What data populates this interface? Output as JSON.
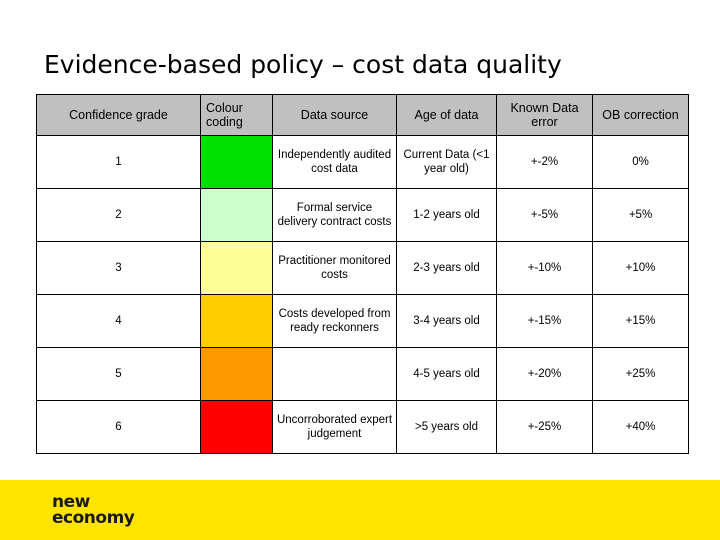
{
  "title": "Evidence-based policy – cost data quality",
  "table": {
    "headers": [
      "Confidence grade",
      "Colour coding",
      "Data source",
      "Age of data",
      "Known Data error",
      "OB correction"
    ],
    "rows": [
      {
        "grade": "1",
        "color": "#00e000",
        "source": "Independently audited cost data",
        "age": "Current Data (<1 year old)",
        "error": "+-2%",
        "correction": "0%"
      },
      {
        "grade": "2",
        "color": "#ccffcc",
        "source": "Formal service delivery contract costs",
        "age": "1-2  years old",
        "error": "+-5%",
        "correction": "+5%"
      },
      {
        "grade": "3",
        "color": "#ffff99",
        "source": "Practitioner monitored costs",
        "age": "2-3 years old",
        "error": "+-10%",
        "correction": "+10%"
      },
      {
        "grade": "4",
        "color": "#ffcc00",
        "source": "Costs developed from ready reckonners",
        "age": "3-4 years old",
        "error": "+-15%",
        "correction": "+15%"
      },
      {
        "grade": "5",
        "color": "#ff9900",
        "source": "",
        "age": "4-5 years old",
        "error": "+-20%",
        "correction": "+25%"
      },
      {
        "grade": "6",
        "color": "#ff0000",
        "source": "Uncorroborated expert judgement",
        "age": ">5 years old",
        "error": "+-25%",
        "correction": "+40%"
      }
    ]
  },
  "footer": {
    "logo_line1": "new",
    "logo_line2": "economy",
    "background": "#ffe400"
  }
}
